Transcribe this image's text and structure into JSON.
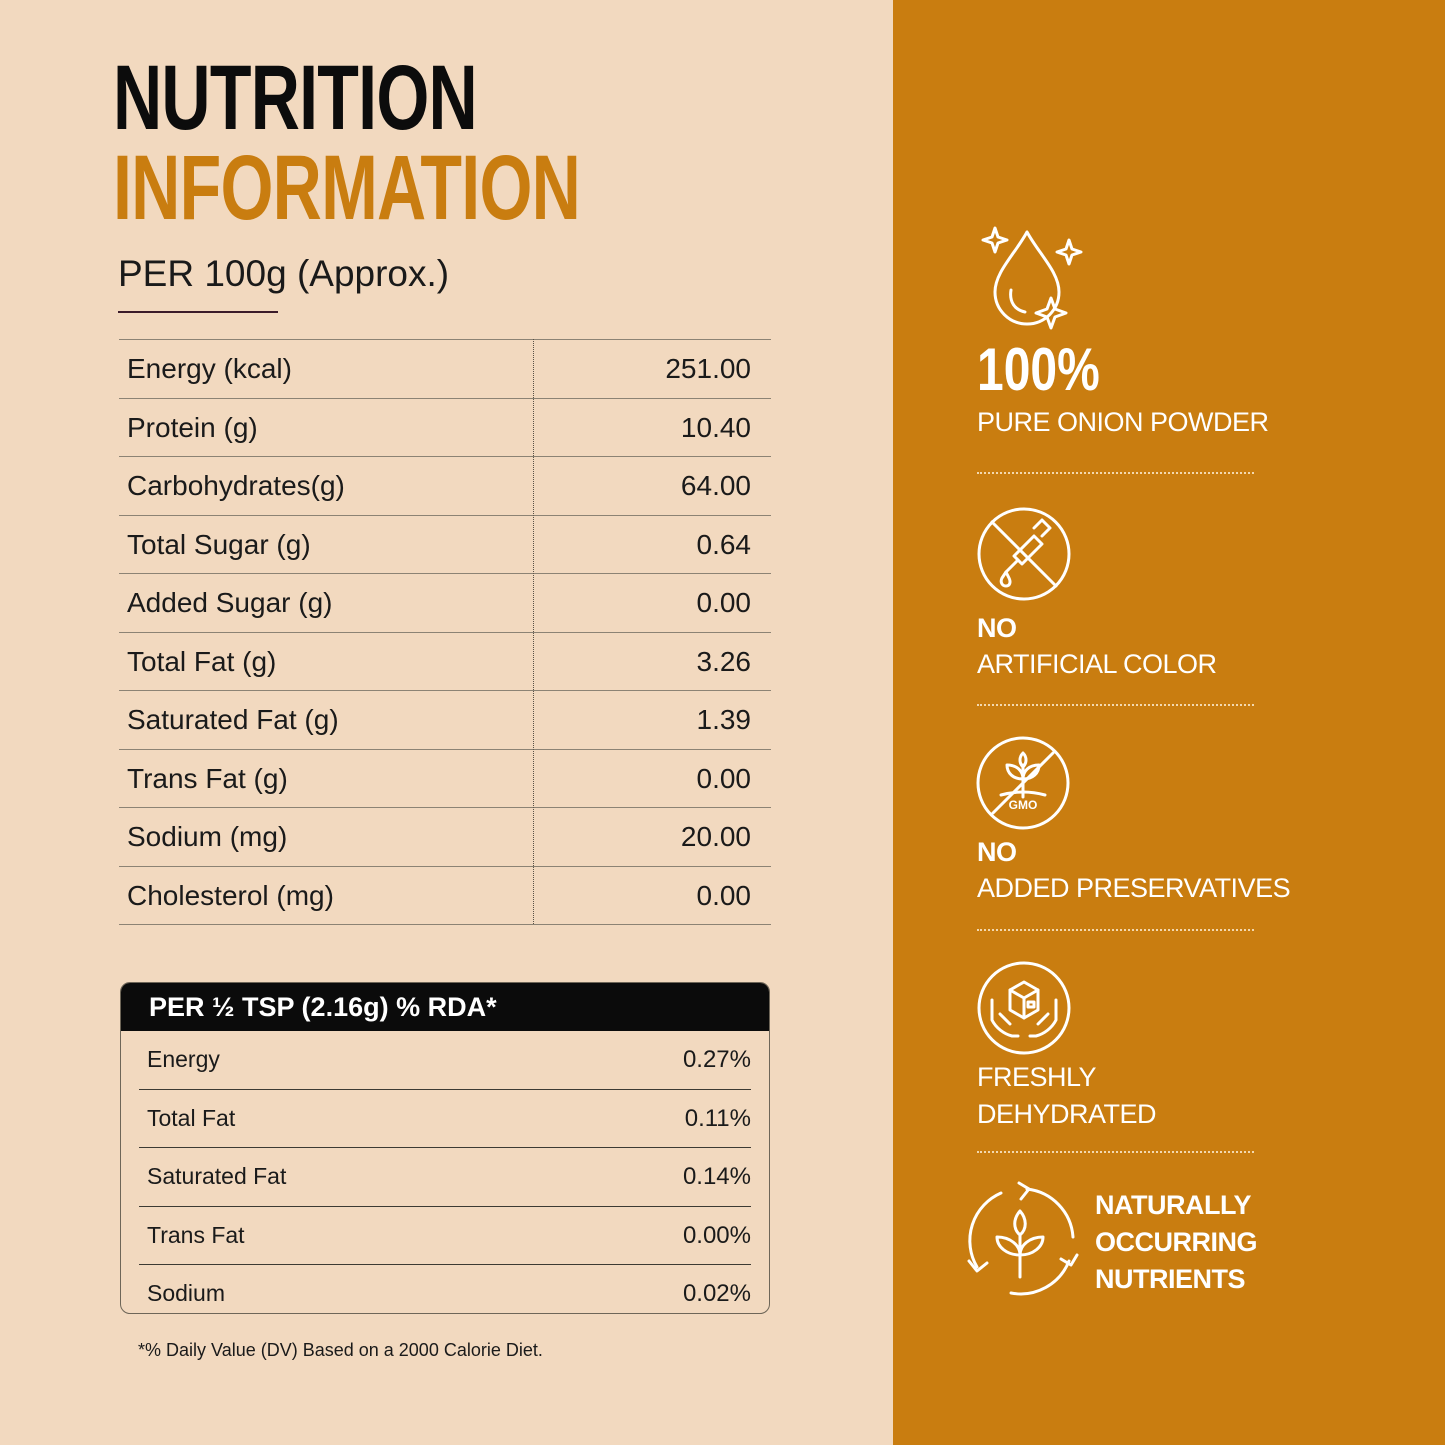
{
  "header": {
    "title_line1": "NUTRITION",
    "title_line2": "INFORMATION",
    "subtitle": "PER 100g (Approx.)"
  },
  "nutrition_table": [
    {
      "label": "Energy (kcal)",
      "value": "251.00"
    },
    {
      "label": "Protein (g)",
      "value": "10.40"
    },
    {
      "label": "Carbohydrates(g)",
      "value": "64.00"
    },
    {
      "label": "Total Sugar (g)",
      "value": "0.64"
    },
    {
      "label": "Added Sugar (g)",
      "value": "0.00"
    },
    {
      "label": "Total Fat (g)",
      "value": "3.26"
    },
    {
      "label": "Saturated Fat (g)",
      "value": "1.39"
    },
    {
      "label": "Trans Fat (g)",
      "value": "0.00"
    },
    {
      "label": "Sodium (mg)",
      "value": "20.00"
    },
    {
      "label": "Cholesterol (mg)",
      "value": "0.00"
    }
  ],
  "rda": {
    "heading": "PER ½ TSP (2.16g) % RDA*",
    "rows": [
      {
        "label": "Energy",
        "value": "0.27%"
      },
      {
        "label": "Total Fat",
        "value": "0.11%"
      },
      {
        "label": "Saturated Fat",
        "value": "0.14%"
      },
      {
        "label": "Trans Fat",
        "value": "0.00%"
      },
      {
        "label": "Sodium",
        "value": "0.02%"
      }
    ]
  },
  "footnote": "*% Daily Value (DV) Based on a 2000 Calorie Diet.",
  "features": {
    "pure": {
      "icon": "sparkling-drop-icon",
      "big": "100%",
      "text": "PURE ONION POWDER"
    },
    "color": {
      "icon": "no-dropper-icon",
      "line1": "NO",
      "line2": "ARTIFICIAL COLOR"
    },
    "preservatives": {
      "icon": "no-gmo-icon",
      "line1": "NO",
      "line2": "ADDED PRESERVATIVES"
    },
    "fresh": {
      "icon": "hands-box-icon",
      "line1": "FRESHLY",
      "line2": "DEHYDRATED"
    },
    "natural": {
      "icon": "recycle-plant-icon",
      "line1": "NATURALLY",
      "line2": "OCCURRING",
      "line3": "NUTRIENTS"
    }
  },
  "colors": {
    "background": "#f2d9bf",
    "accent": "#c97d10",
    "dark": "#0b0b0b"
  }
}
